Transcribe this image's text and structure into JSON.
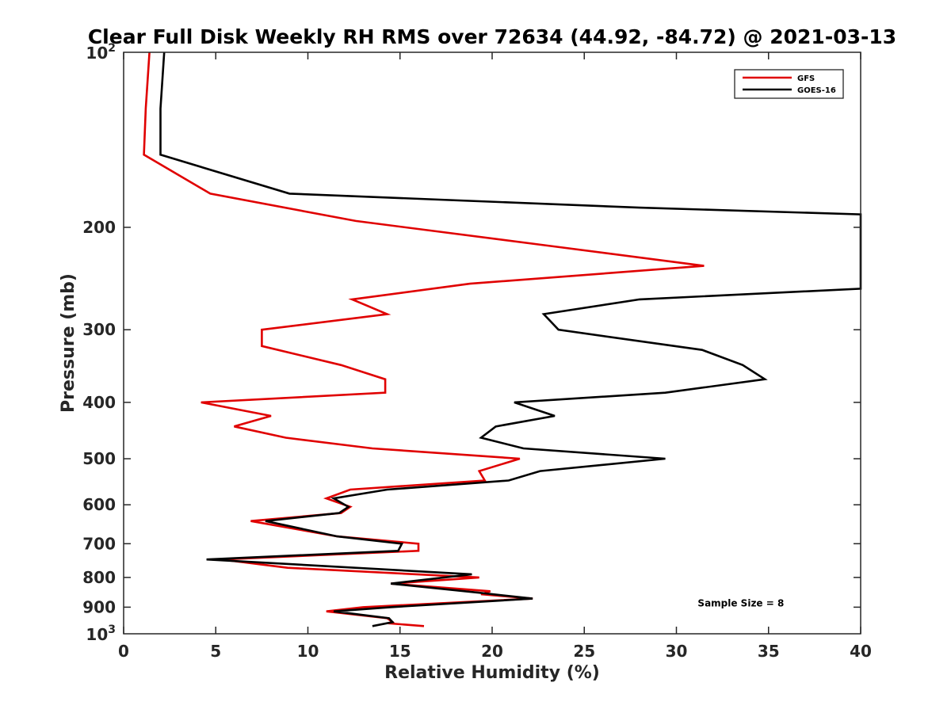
{
  "chart_data": {
    "type": "line",
    "title": "Clear Full Disk Weekly RH RMS over 72634 (44.92, -84.72) @ 2021-03-13",
    "xlabel": "Relative Humidity (%)",
    "ylabel": "Pressure (mb)",
    "xlim": [
      0,
      40
    ],
    "ylim": [
      100,
      1000
    ],
    "yscale": "log",
    "y_reversed": true,
    "x_ticks": [
      0,
      5,
      10,
      15,
      20,
      25,
      30,
      35,
      40
    ],
    "x_tick_labels": [
      "0",
      "5",
      "10",
      "15",
      "20",
      "25",
      "30",
      "35",
      "40"
    ],
    "y_ticks": [
      200,
      300,
      400,
      500,
      600,
      700,
      800,
      900
    ],
    "y_tick_labels": [
      "200",
      "300",
      "400",
      "500",
      "600",
      "700",
      "800",
      "900"
    ],
    "y_end_labels": [
      {
        "value": 100,
        "base": "10",
        "exp": "2"
      },
      {
        "value": 1000,
        "base": "10",
        "exp": "3"
      }
    ],
    "grid": false,
    "legend_position": "top-right",
    "series": [
      {
        "name": "GFS",
        "color": "#e00000",
        "points": [
          [
            1.4,
            100
          ],
          [
            1.2,
            125
          ],
          [
            1.1,
            150
          ],
          [
            4.7,
            175
          ],
          [
            12.6,
            195
          ],
          [
            23.0,
            215
          ],
          [
            31.5,
            233
          ],
          [
            18.8,
            250
          ],
          [
            12.4,
            266
          ],
          [
            14.3,
            282
          ],
          [
            7.5,
            300
          ],
          [
            7.5,
            320
          ],
          [
            11.8,
            345
          ],
          [
            14.2,
            365
          ],
          [
            14.2,
            385
          ],
          [
            4.2,
            400
          ],
          [
            8.0,
            422
          ],
          [
            6.0,
            440
          ],
          [
            8.8,
            460
          ],
          [
            13.5,
            480
          ],
          [
            21.5,
            500
          ],
          [
            19.3,
            525
          ],
          [
            19.6,
            545
          ],
          [
            12.3,
            565
          ],
          [
            11.0,
            585
          ],
          [
            12.3,
            605
          ],
          [
            11.8,
            620
          ],
          [
            6.9,
            640
          ],
          [
            11.6,
            680
          ],
          [
            16.0,
            700
          ],
          [
            16.0,
            720
          ],
          [
            5.3,
            745
          ],
          [
            8.9,
            770
          ],
          [
            19.3,
            800
          ],
          [
            14.5,
            820
          ],
          [
            19.9,
            845
          ],
          [
            19.4,
            855
          ],
          [
            22.2,
            870
          ],
          [
            13.0,
            900
          ],
          [
            11.0,
            915
          ],
          [
            14.3,
            940
          ],
          [
            14.6,
            955
          ],
          [
            14.5,
            960
          ],
          [
            16.3,
            970
          ]
        ]
      },
      {
        "name": "GOES-16",
        "color": "#000000",
        "points": [
          [
            2.2,
            100
          ],
          [
            2.0,
            125
          ],
          [
            2.0,
            150
          ],
          [
            9.0,
            175
          ],
          [
            28.0,
            185
          ],
          [
            40.0,
            190
          ],
          [
            40.0,
            255
          ],
          [
            28.0,
            266
          ],
          [
            22.8,
            282
          ],
          [
            23.6,
            300
          ],
          [
            31.4,
            325
          ],
          [
            33.6,
            345
          ],
          [
            34.8,
            365
          ],
          [
            29.4,
            385
          ],
          [
            21.2,
            400
          ],
          [
            23.4,
            422
          ],
          [
            20.2,
            440
          ],
          [
            19.4,
            460
          ],
          [
            21.7,
            480
          ],
          [
            29.4,
            500
          ],
          [
            22.6,
            525
          ],
          [
            20.9,
            545
          ],
          [
            14.3,
            565
          ],
          [
            11.4,
            585
          ],
          [
            12.2,
            605
          ],
          [
            11.7,
            620
          ],
          [
            7.7,
            640
          ],
          [
            11.6,
            680
          ],
          [
            15.1,
            700
          ],
          [
            14.9,
            720
          ],
          [
            4.5,
            745
          ],
          [
            18.9,
            790
          ],
          [
            14.5,
            820
          ],
          [
            19.3,
            850
          ],
          [
            22.2,
            870
          ],
          [
            14.5,
            900
          ],
          [
            11.4,
            915
          ],
          [
            14.4,
            940
          ],
          [
            14.6,
            955
          ],
          [
            13.5,
            970
          ]
        ]
      }
    ],
    "annotations": [
      {
        "text": "Sample Size = 8",
        "x": 33.5,
        "y": 915
      }
    ]
  }
}
